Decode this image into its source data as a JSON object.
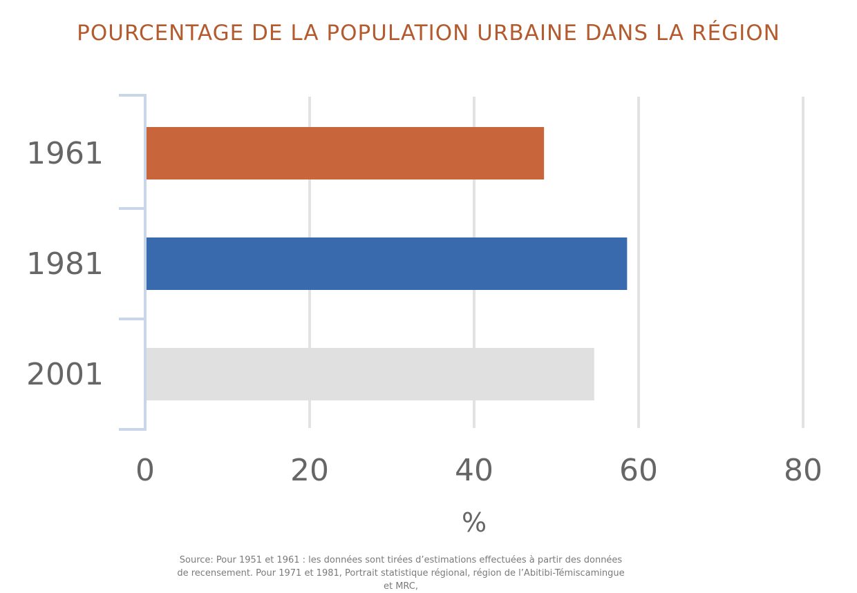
{
  "chart_data": {
    "type": "bar",
    "orientation": "horizontal",
    "title": "POURCENTAGE DE LA POPULATION URBAINE DANS LA RÉGION",
    "categories": [
      "1961",
      "1981",
      "2001"
    ],
    "values": [
      48.5,
      58.6,
      54.6
    ],
    "bar_colors": [
      "#c8653a",
      "#386aad",
      "#e0e0e0"
    ],
    "xlabel": "%",
    "ylabel": "",
    "xlim": [
      0,
      80
    ],
    "xticks": [
      "0",
      "20",
      "40",
      "60",
      "80"
    ],
    "grid": "vertical",
    "legend": "none"
  },
  "source_note": "Source: Pour 1951 et 1961 : les données sont tirées d’estimations effectuées à partir des données de recensement. Pour 1971 et 1981, Portrait statistique régional, région de l’Abitibi-Témiscamingue et MRC,",
  "colors": {
    "title": "#b35a2e",
    "axis_text": "#666666",
    "grid": "#e2e2e2",
    "axis_line": "#c9d6e8"
  }
}
